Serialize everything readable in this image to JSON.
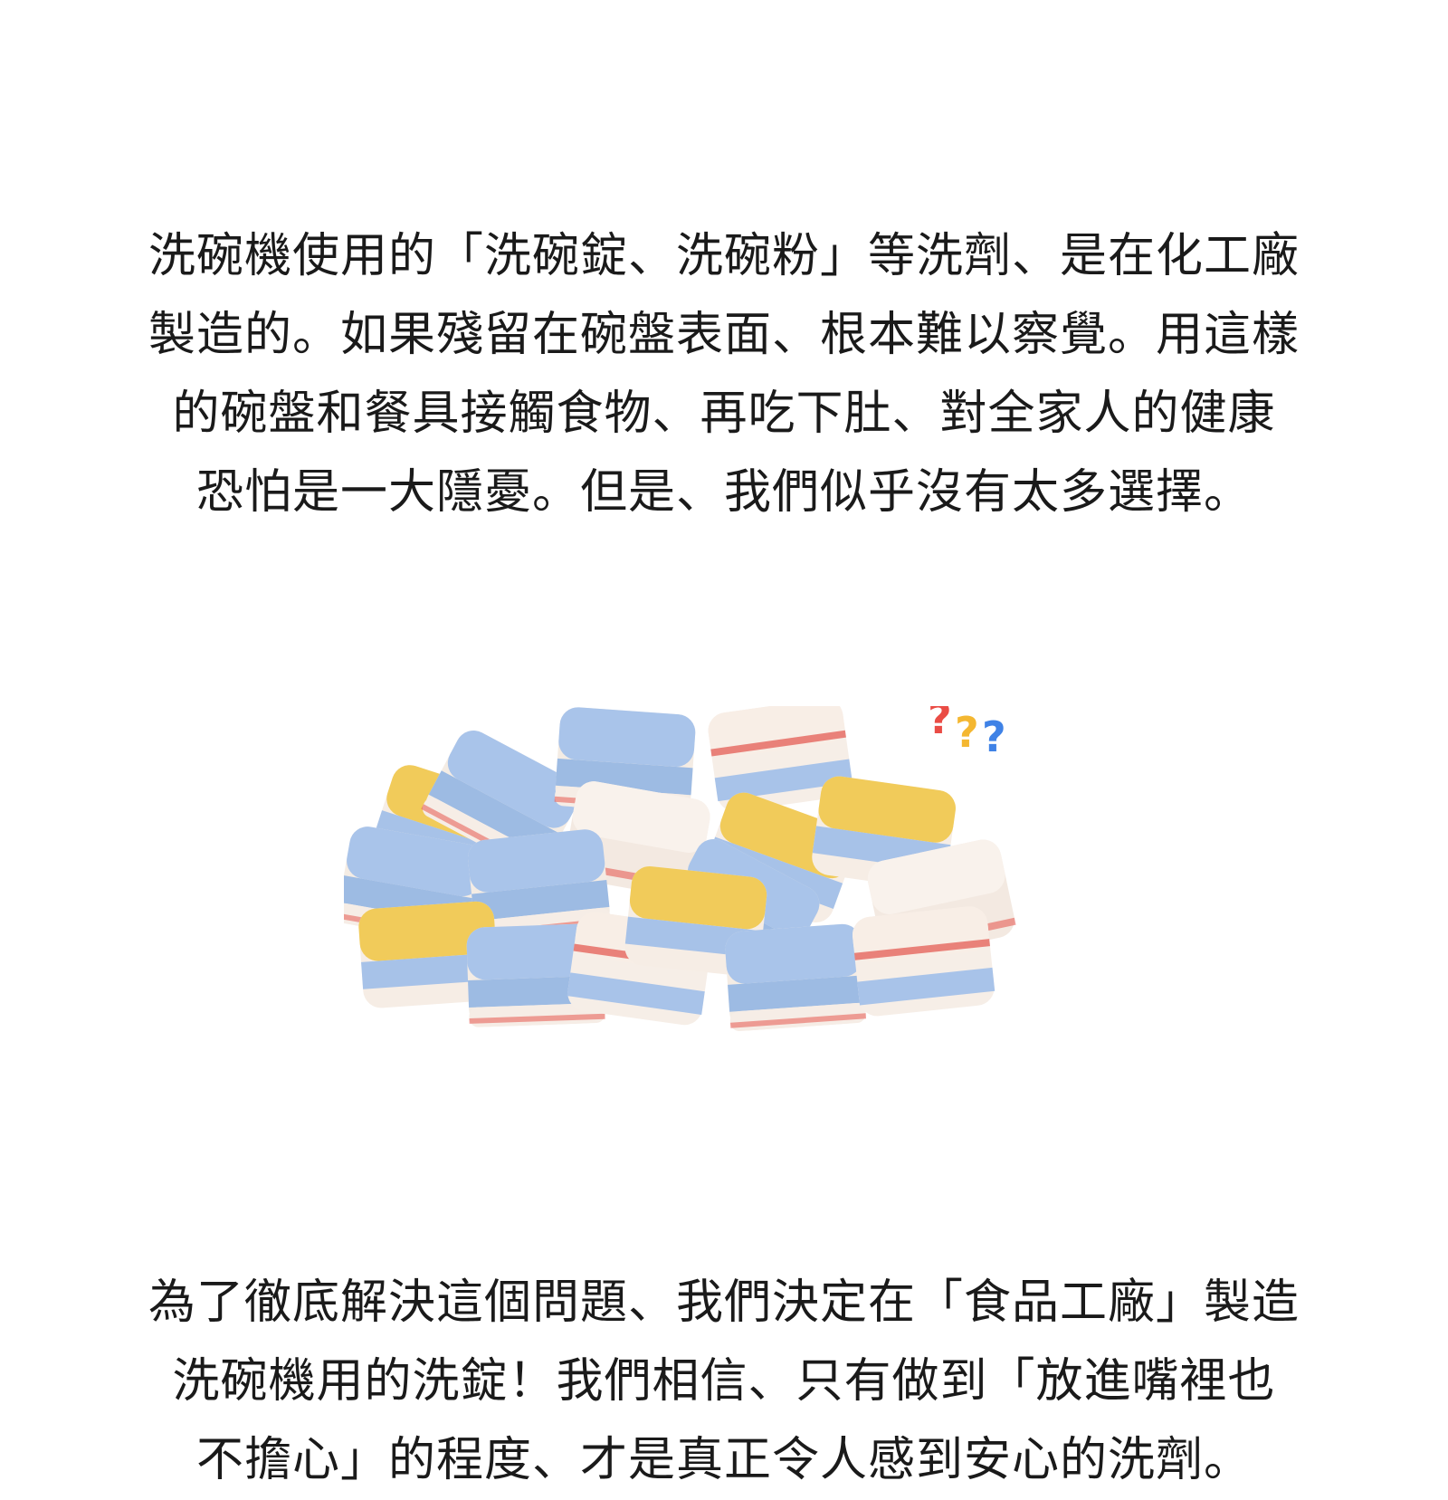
{
  "intro": {
    "lines": [
      "洗碗機使用的「洗碗錠、洗碗粉」等洗劑、是在化工廠",
      "製造的。如果殘留在碗盤表面、根本難以察覺。用這樣",
      "的碗盤和餐具接觸食物、再吃下肚、對全家人的健康",
      "恐怕是一大隱憂。但是、我們似乎沒有太多選擇。"
    ]
  },
  "illustration": {
    "question_marks": [
      "?",
      "?",
      "?"
    ],
    "colors": {
      "blue": "#9dbbe3",
      "yellow": "#f0c64e",
      "red": "#e3524a",
      "cream": "#f7efe6",
      "q_red": "#ea4c45",
      "q_yellow": "#f4b731",
      "q_blue": "#3f82e6"
    }
  },
  "conclusion": {
    "lines": [
      "為了徹底解決這個問題、我們決定在「食品工廠」製造",
      "洗碗機用的洗錠！我們相信、只有做到「放進嘴裡也",
      "不擔心」的程度、才是真正令人感到安心的洗劑。"
    ]
  }
}
